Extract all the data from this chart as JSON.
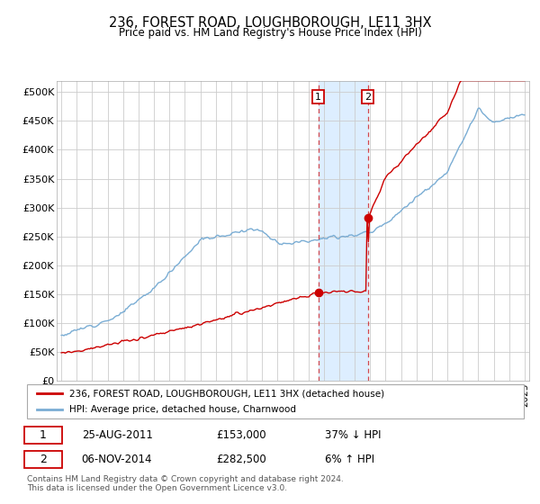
{
  "title": "236, FOREST ROAD, LOUGHBOROUGH, LE11 3HX",
  "subtitle": "Price paid vs. HM Land Registry's House Price Index (HPI)",
  "ylabel_ticks": [
    "£0",
    "£50K",
    "£100K",
    "£150K",
    "£200K",
    "£250K",
    "£300K",
    "£350K",
    "£400K",
    "£450K",
    "£500K"
  ],
  "ytick_values": [
    0,
    50000,
    100000,
    150000,
    200000,
    250000,
    300000,
    350000,
    400000,
    450000,
    500000
  ],
  "ylim": [
    0,
    520000
  ],
  "background_color": "#ffffff",
  "plot_bg_color": "#ffffff",
  "grid_color": "#cccccc",
  "hpi_color": "#7aadd4",
  "price_color": "#cc0000",
  "between_shade_color": "#ddeeff",
  "transaction1": {
    "date": "25-AUG-2011",
    "price": 153000,
    "label": "1",
    "pct": "37% ↓ HPI"
  },
  "transaction2": {
    "date": "06-NOV-2014",
    "price": 282500,
    "label": "2",
    "pct": "6% ↑ HPI"
  },
  "legend_line1": "236, FOREST ROAD, LOUGHBOROUGH, LE11 3HX (detached house)",
  "legend_line2": "HPI: Average price, detached house, Charnwood",
  "footer": "Contains HM Land Registry data © Crown copyright and database right 2024.\nThis data is licensed under the Open Government Licence v3.0.",
  "xlim_start": 1994.7,
  "xlim_end": 2025.3,
  "t1_year": 2011.64,
  "t2_year": 2014.84,
  "t1_price": 153000,
  "t2_price": 282500
}
